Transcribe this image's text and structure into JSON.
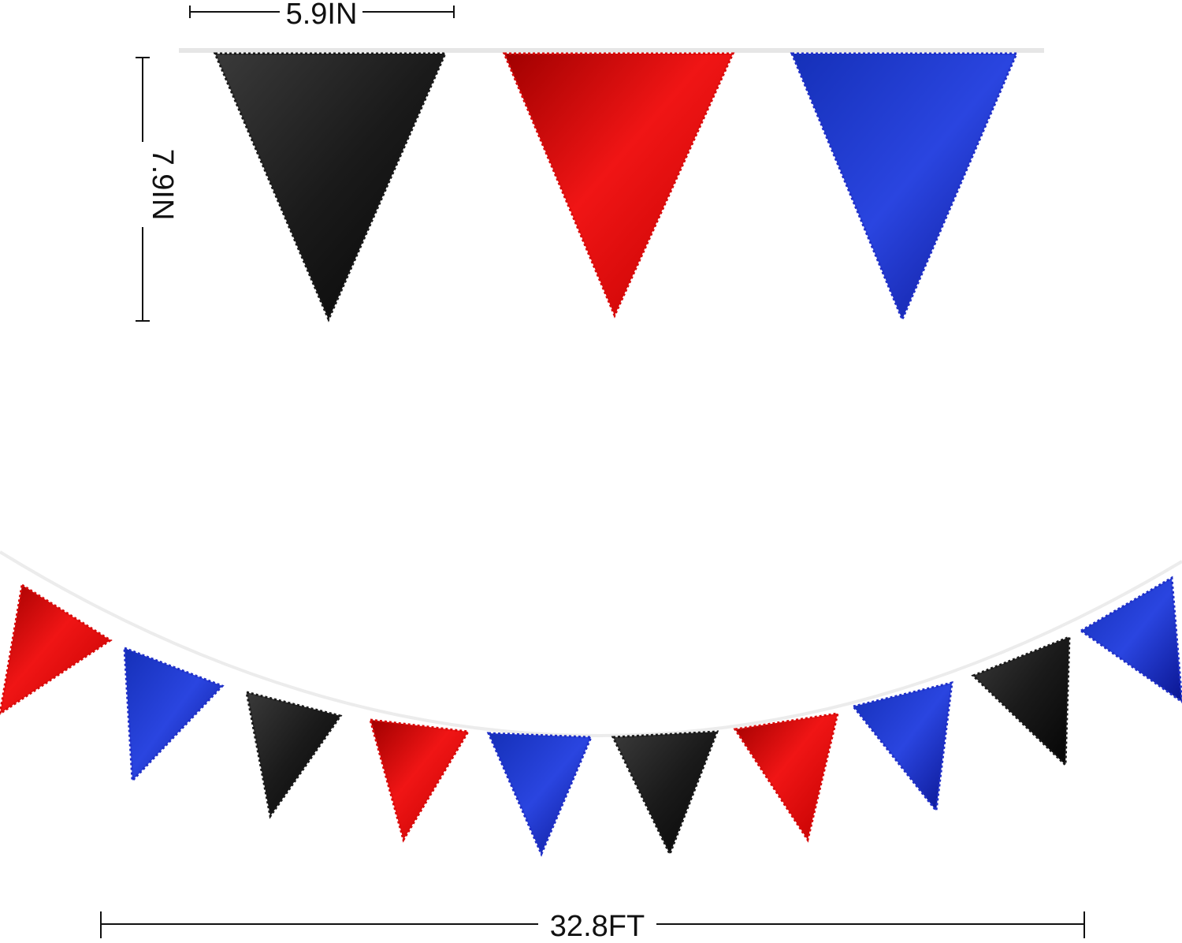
{
  "dimensions": {
    "width_label": "5.9IN",
    "height_label": "7.9IN",
    "length_label": "32.8FT"
  },
  "colors": {
    "black": "#1a1a1a",
    "red": "#d80a0a",
    "blue": "#1f2fc8",
    "string": "#e6e6e6",
    "dimension_line": "#111111"
  },
  "top_flags": [
    "black",
    "red",
    "blue"
  ],
  "garland_flags": [
    "red",
    "blue",
    "black",
    "red",
    "blue",
    "black",
    "red",
    "blue",
    "black",
    "blue"
  ]
}
